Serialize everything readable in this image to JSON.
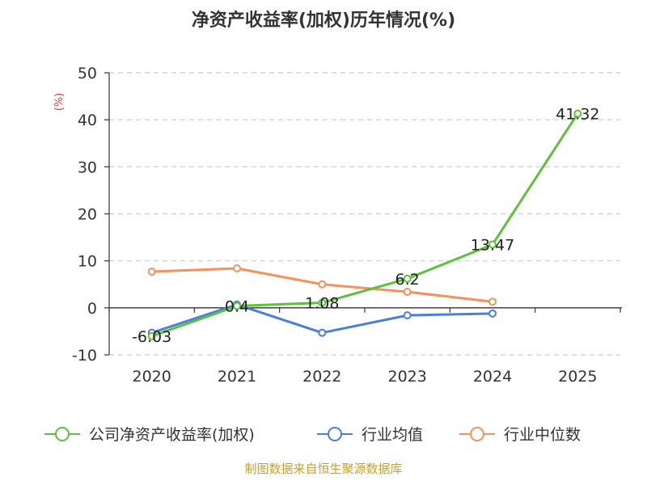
{
  "chart_data": {
    "type": "line",
    "title": "净资产收益率(加权)历年情况(%)",
    "ylabel": "(%)",
    "ylim": [
      -10,
      50
    ],
    "yticks": [
      50,
      40,
      30,
      20,
      10,
      0,
      -10
    ],
    "categories": [
      "2020",
      "2021",
      "2022",
      "2023",
      "2024",
      "2025"
    ],
    "grid": true,
    "legend_position": "bottom",
    "series": [
      {
        "name": "公司净资产收益率(加权)",
        "color": "#5ec13a",
        "values": [
          -6.03,
          0.4,
          1.08,
          6.2,
          13.47,
          41.32
        ],
        "labels": [
          "-6.03",
          "0.4",
          "1.08",
          "6.2",
          "13.47",
          "41.32"
        ]
      },
      {
        "name": "行业均值",
        "color": "#4a7fdc",
        "values": [
          -5.3,
          0.7,
          -5.3,
          -1.6,
          -1.2,
          null
        ]
      },
      {
        "name": "行业中位数",
        "color": "#f5915a",
        "values": [
          7.7,
          8.4,
          5.0,
          3.4,
          1.3,
          null
        ]
      }
    ]
  },
  "footer": {
    "source": "制图数据来自恒生聚源数据库"
  }
}
